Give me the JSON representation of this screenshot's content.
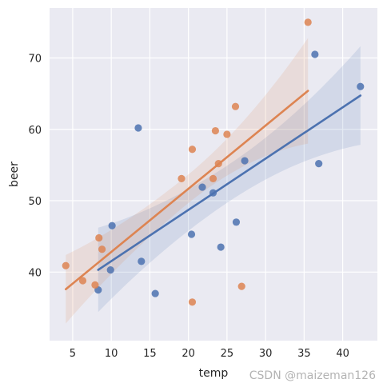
{
  "chart_data": {
    "type": "scatter",
    "xlabel": "temp",
    "ylabel": "beer",
    "xlim": [
      2.0,
      44.5
    ],
    "ylim": [
      30.4,
      77.0
    ],
    "xticks": [
      5,
      10,
      15,
      20,
      25,
      30,
      35,
      40
    ],
    "yticks": [
      40,
      50,
      60,
      70
    ],
    "grid": true,
    "legend": "none",
    "series": [
      {
        "color": "#4c72b0",
        "points": [
          [
            8.3,
            37.5
          ],
          [
            9.9,
            40.3
          ],
          [
            10.1,
            46.5
          ],
          [
            13.5,
            60.2
          ],
          [
            13.9,
            41.5
          ],
          [
            15.7,
            37.0
          ],
          [
            20.4,
            45.3
          ],
          [
            21.8,
            51.9
          ],
          [
            23.2,
            51.1
          ],
          [
            24.2,
            43.5
          ],
          [
            26.2,
            47.0
          ],
          [
            27.3,
            55.6
          ],
          [
            36.4,
            70.5
          ],
          [
            36.9,
            55.2
          ],
          [
            42.3,
            66.0
          ]
        ],
        "fit": {
          "x0": 8.3,
          "x1": 42.3,
          "slope": 0.7183,
          "intercept": 34.35
        },
        "band_width": [
          5.9,
          2.6,
          6.9
        ]
      },
      {
        "color": "#dd8452",
        "points": [
          [
            4.1,
            40.9
          ],
          [
            6.3,
            38.8
          ],
          [
            7.9,
            38.2
          ],
          [
            8.4,
            44.8
          ],
          [
            8.8,
            43.2
          ],
          [
            19.1,
            53.1
          ],
          [
            20.5,
            57.2
          ],
          [
            20.5,
            35.8
          ],
          [
            23.2,
            53.1
          ],
          [
            23.5,
            59.8
          ],
          [
            23.9,
            55.2
          ],
          [
            25.0,
            59.3
          ],
          [
            26.1,
            63.2
          ],
          [
            26.9,
            38.0
          ],
          [
            35.5,
            75.0
          ]
        ],
        "fit": {
          "x0": 4.1,
          "x1": 35.5,
          "slope": 0.8853,
          "intercept": 33.97
        },
        "band_width": [
          4.8,
          2.0,
          7.4
        ]
      }
    ]
  },
  "watermark": "CSDN @maizeman126"
}
